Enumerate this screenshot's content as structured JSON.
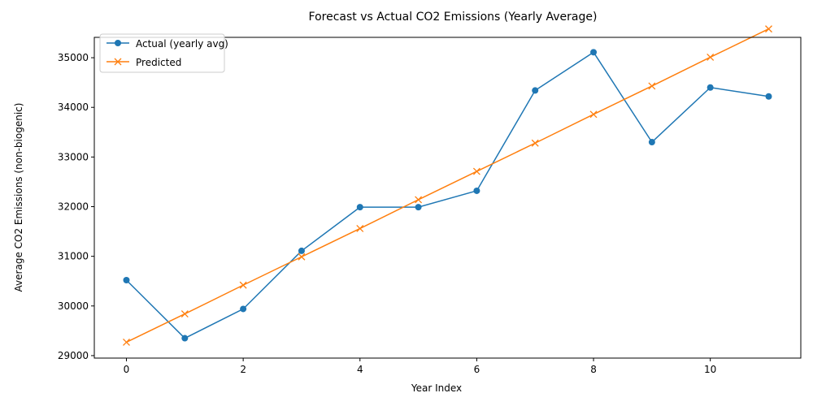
{
  "chart_data": {
    "type": "line",
    "title": "Forecast vs Actual CO2 Emissions (Yearly Average)",
    "xlabel": "Year Index",
    "ylabel": "Average CO2 Emissions (non-biogenic)",
    "xlim": [
      -0.55,
      11.55
    ],
    "ylim": [
      28950,
      35410
    ],
    "xticks": [
      0,
      2,
      4,
      6,
      8,
      10
    ],
    "yticks": [
      29000,
      30000,
      31000,
      32000,
      33000,
      34000,
      35000
    ],
    "grid": false,
    "legend_position": "top-left",
    "x": [
      0,
      1,
      2,
      3,
      4,
      5,
      6,
      7,
      8,
      9,
      10,
      11
    ],
    "series": [
      {
        "name": "Actual (yearly avg)",
        "color": "#1f77b4",
        "marker": "circle",
        "values": [
          30520,
          29350,
          29940,
          31110,
          31990,
          31990,
          32320,
          34340,
          35110,
          33300,
          34400,
          34220
        ]
      },
      {
        "name": "Predicted",
        "color": "#ff7f0e",
        "marker": "x",
        "values": [
          29270,
          29840,
          30420,
          30990,
          31560,
          32140,
          32710,
          33280,
          33860,
          34430,
          35010,
          35580
        ]
      }
    ]
  }
}
